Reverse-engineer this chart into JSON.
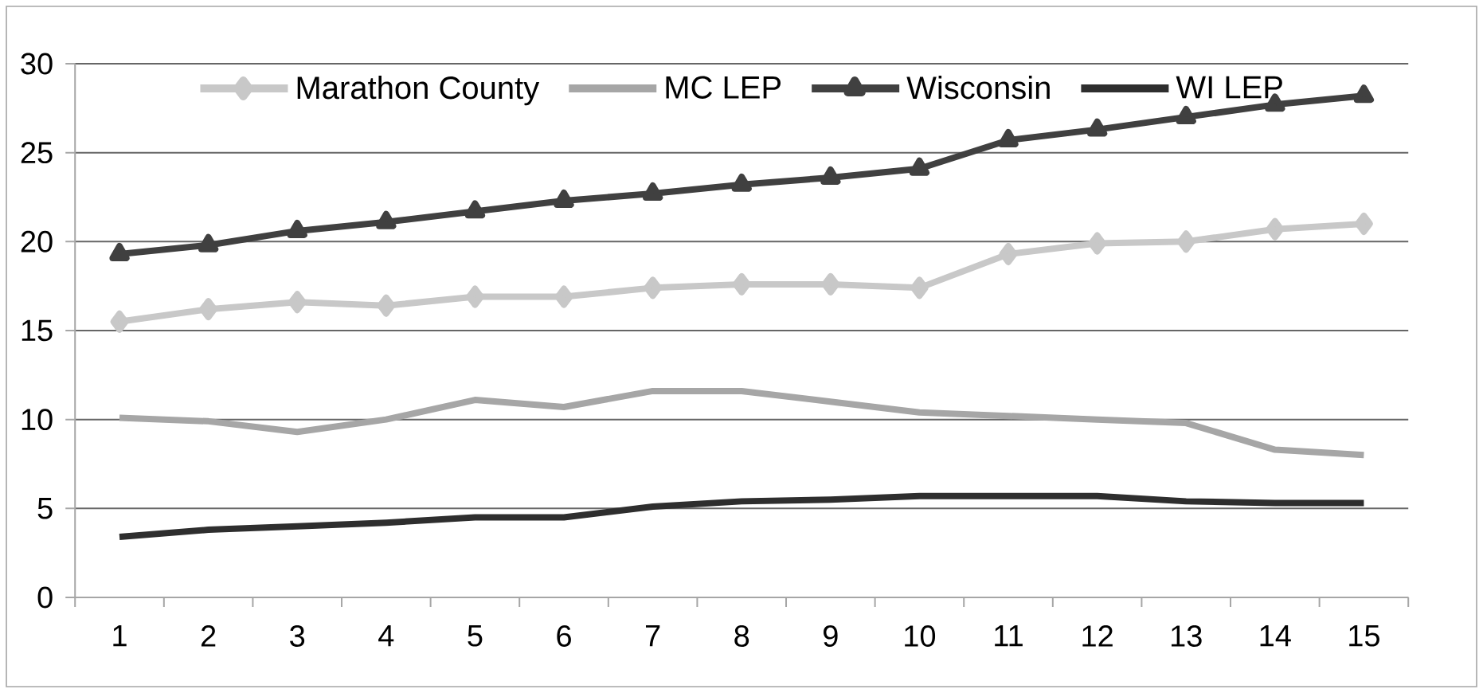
{
  "chart_data": {
    "type": "line",
    "categories": [
      "1",
      "2",
      "3",
      "4",
      "5",
      "6",
      "7",
      "8",
      "9",
      "10",
      "11",
      "12",
      "13",
      "14",
      "15"
    ],
    "series": [
      {
        "name": "Marathon County",
        "color": "#c8c8c8",
        "marker": "diamond",
        "values": [
          15.5,
          16.2,
          16.6,
          16.4,
          16.9,
          16.9,
          17.4,
          17.6,
          17.6,
          17.4,
          19.3,
          19.9,
          20.0,
          20.7,
          21.0
        ]
      },
      {
        "name": "MC LEP",
        "color": "#a6a6a6",
        "marker": "none",
        "values": [
          10.1,
          9.9,
          9.3,
          10.0,
          11.1,
          10.7,
          11.6,
          11.6,
          11.0,
          10.4,
          10.2,
          10.0,
          9.8,
          8.3,
          8.0
        ]
      },
      {
        "name": "Wisconsin",
        "color": "#404040",
        "marker": "triangle",
        "values": [
          19.3,
          19.8,
          20.6,
          21.1,
          21.7,
          22.3,
          22.7,
          23.2,
          23.6,
          24.1,
          25.7,
          26.3,
          27.0,
          27.7,
          28.2
        ]
      },
      {
        "name": "WI LEP",
        "color": "#2e2e2e",
        "marker": "none",
        "values": [
          3.4,
          3.8,
          4.0,
          4.2,
          4.5,
          4.5,
          5.1,
          5.4,
          5.5,
          5.7,
          5.7,
          5.7,
          5.4,
          5.3,
          5.3
        ]
      }
    ],
    "ylim": [
      0,
      30
    ],
    "yticks": [
      0,
      5,
      10,
      15,
      20,
      25,
      30
    ],
    "grid": "y",
    "legend": "top",
    "line_style": "solid"
  }
}
